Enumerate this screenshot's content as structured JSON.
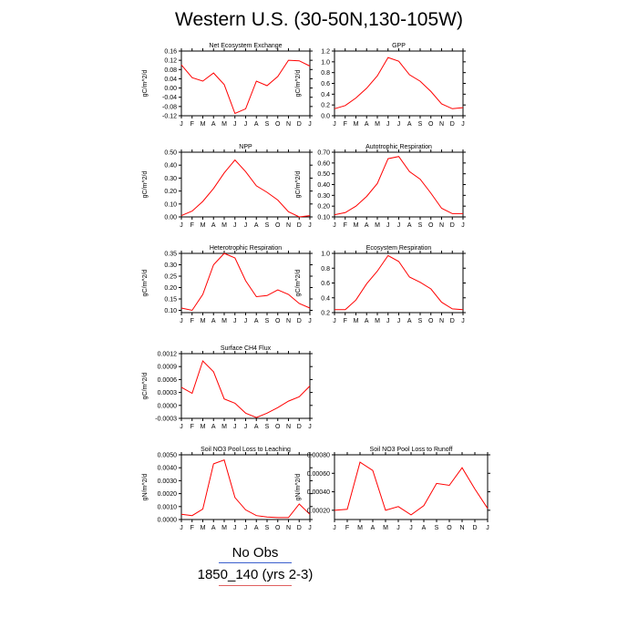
{
  "title": "Western U.S. (30-50N,130-105W)",
  "legend": [
    {
      "label": "No Obs",
      "color": "#3a5fcd"
    },
    {
      "label": "1850_140 (yrs 2-3)",
      "color": "#e06060"
    }
  ],
  "line_color": "#ff0000",
  "chart_data": [
    {
      "type": "line",
      "title": "Net Ecosystem Exchange",
      "ylabel": "gC/m^2/d",
      "x": [
        "J",
        "F",
        "M",
        "A",
        "M",
        "J",
        "J",
        "A",
        "S",
        "O",
        "N",
        "D",
        "J"
      ],
      "yticks": [
        "0.16",
        "0.12",
        "0.08",
        "0.04",
        "0.00",
        "-0.04",
        "-0.08",
        "-0.12"
      ],
      "ylim": [
        -0.12,
        0.16
      ],
      "values": [
        0.1,
        0.045,
        0.03,
        0.065,
        0.015,
        -0.11,
        -0.09,
        0.03,
        0.01,
        0.05,
        0.12,
        0.118,
        0.095
      ]
    },
    {
      "type": "line",
      "title": "GPP",
      "ylabel": "gC/m^2/d",
      "x": [
        "J",
        "F",
        "M",
        "A",
        "M",
        "J",
        "J",
        "A",
        "S",
        "O",
        "N",
        "D",
        "J"
      ],
      "yticks": [
        "1.2",
        "1.0",
        "0.8",
        "0.6",
        "0.4",
        "0.2",
        "0.0"
      ],
      "ylim": [
        0.0,
        1.2
      ],
      "values": [
        0.13,
        0.19,
        0.33,
        0.51,
        0.74,
        1.08,
        1.01,
        0.76,
        0.64,
        0.45,
        0.22,
        0.13,
        0.15
      ]
    },
    {
      "type": "line",
      "title": "NPP",
      "ylabel": "gC/m^2/d",
      "x": [
        "J",
        "F",
        "M",
        "A",
        "M",
        "J",
        "J",
        "A",
        "S",
        "O",
        "N",
        "D",
        "J"
      ],
      "yticks": [
        "0.50",
        "0.40",
        "0.30",
        "0.20",
        "0.10",
        "0.00"
      ],
      "ylim": [
        0.0,
        0.5
      ],
      "values": [
        0.01,
        0.045,
        0.12,
        0.22,
        0.34,
        0.44,
        0.35,
        0.24,
        0.19,
        0.13,
        0.04,
        0.0,
        0.01
      ]
    },
    {
      "type": "line",
      "title": "Autotrophic Respiration",
      "ylabel": "gC/m^2/d",
      "x": [
        "J",
        "F",
        "M",
        "A",
        "M",
        "J",
        "J",
        "A",
        "S",
        "O",
        "N",
        "D",
        "J"
      ],
      "yticks": [
        "0.70",
        "0.60",
        "0.50",
        "0.40",
        "0.30",
        "0.20",
        "0.10"
      ],
      "ylim": [
        0.1,
        0.7
      ],
      "values": [
        0.12,
        0.14,
        0.2,
        0.29,
        0.41,
        0.64,
        0.66,
        0.52,
        0.45,
        0.32,
        0.18,
        0.13,
        0.13
      ]
    },
    {
      "type": "line",
      "title": "Heterotrophic Respiration",
      "ylabel": "gC/m^2/d",
      "x": [
        "J",
        "F",
        "M",
        "A",
        "M",
        "J",
        "J",
        "A",
        "S",
        "O",
        "N",
        "D",
        "J"
      ],
      "yticks": [
        "0.35",
        "0.30",
        "0.25",
        "0.20",
        "0.15",
        "0.10"
      ],
      "ylim": [
        0.09,
        0.35
      ],
      "values": [
        0.11,
        0.1,
        0.17,
        0.3,
        0.35,
        0.33,
        0.23,
        0.16,
        0.165,
        0.19,
        0.17,
        0.13,
        0.11
      ]
    },
    {
      "type": "line",
      "title": "Ecosystem Respiration",
      "ylabel": "gC/m^2/d",
      "x": [
        "J",
        "F",
        "M",
        "A",
        "M",
        "J",
        "J",
        "A",
        "S",
        "O",
        "N",
        "D",
        "J"
      ],
      "yticks": [
        "1.0",
        "0.8",
        "0.6",
        "0.4",
        "0.2"
      ],
      "ylim": [
        0.2,
        1.0
      ],
      "values": [
        0.24,
        0.24,
        0.37,
        0.59,
        0.76,
        0.97,
        0.89,
        0.68,
        0.61,
        0.52,
        0.34,
        0.25,
        0.24
      ]
    },
    {
      "type": "line",
      "title": "Surface CH4 Flux",
      "ylabel": "gC/m^2/d",
      "x": [
        "J",
        "F",
        "M",
        "A",
        "M",
        "J",
        "J",
        "A",
        "S",
        "O",
        "N",
        "D",
        "J"
      ],
      "yticks": [
        "0.0012",
        "0.0009",
        "0.0006",
        "0.0003",
        "0.0000",
        "-0.0003"
      ],
      "ylim": [
        -0.0003,
        0.0012
      ],
      "values": [
        0.00042,
        0.00028,
        0.00103,
        0.00078,
        0.00015,
        5e-05,
        -0.00018,
        -0.00028,
        -0.00018,
        -5e-05,
        0.0001,
        0.0002,
        0.00045
      ]
    },
    {
      "type": "line",
      "title": "Soil NO3 Pool Loss to Leaching",
      "ylabel": "gN/m^2/d",
      "x": [
        "J",
        "F",
        "M",
        "A",
        "M",
        "J",
        "J",
        "A",
        "S",
        "O",
        "N",
        "D",
        "J"
      ],
      "yticks": [
        "0.0050",
        "0.0040",
        "0.0030",
        "0.0020",
        "0.0010",
        "0.0000"
      ],
      "ylim": [
        0.0,
        0.005
      ],
      "values": [
        0.0004,
        0.0003,
        0.0008,
        0.0043,
        0.0046,
        0.0017,
        0.00075,
        0.0003,
        0.0002,
        0.00015,
        0.00015,
        0.0012,
        0.0004
      ]
    },
    {
      "type": "line",
      "title": "Soil NO3 Pool Loss to Runoff",
      "ylabel": "gN/m^2/d",
      "x": [
        "J",
        "F",
        "M",
        "A",
        "M",
        "J",
        "J",
        "A",
        "S",
        "O",
        "N",
        "D",
        "J"
      ],
      "yticks": [
        "0.00080",
        "0.00060",
        "0.00040",
        "0.00020"
      ],
      "ylim": [
        0.0001,
        0.0008
      ],
      "values": [
        0.0002,
        0.00021,
        0.00072,
        0.00063,
        0.0002,
        0.00024,
        0.00015,
        0.00025,
        0.00049,
        0.00047,
        0.00066,
        0.00043,
        0.00022
      ]
    }
  ]
}
